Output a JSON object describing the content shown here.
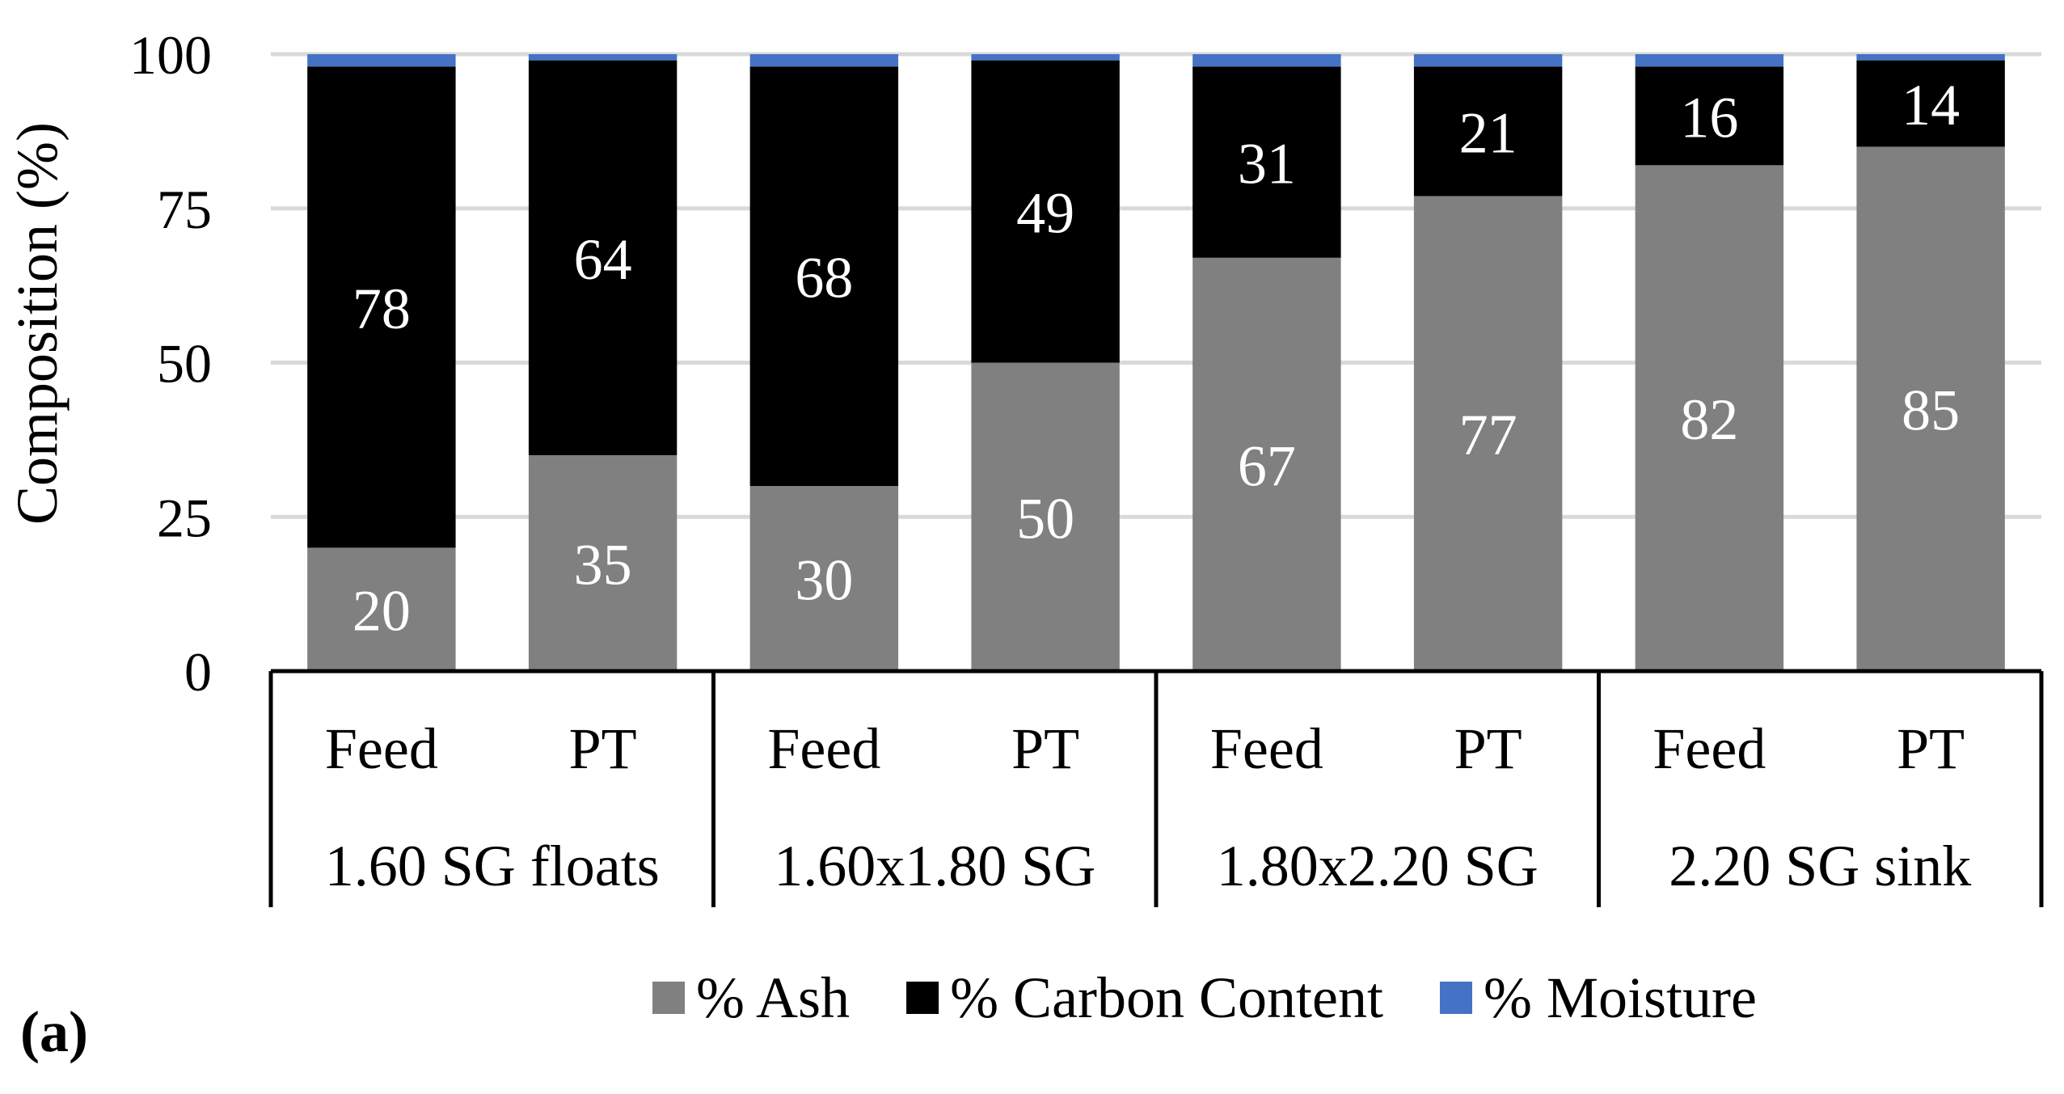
{
  "chart_data": {
    "type": "bar",
    "stacked": true,
    "panel_label": "(a)",
    "ylabel": "Composition (%)",
    "xlabel": "",
    "ylim": [
      0,
      100
    ],
    "yticks": [
      0,
      25,
      50,
      75,
      100
    ],
    "grid": true,
    "groups": [
      "1.60 SG floats",
      "1.60x1.80 SG",
      "1.80x2.20 SG",
      "2.20 SG sink"
    ],
    "categories": [
      "Feed",
      "PT",
      "Feed",
      "PT",
      "Feed",
      "PT",
      "Feed",
      "PT"
    ],
    "series": [
      {
        "name": "% Ash",
        "color": "#808080",
        "values": [
          20,
          35,
          30,
          50,
          67,
          77,
          82,
          85
        ],
        "labels": [
          "20",
          "35",
          "30",
          "50",
          "67",
          "77",
          "82",
          "85"
        ]
      },
      {
        "name": "% Carbon Content",
        "color": "#000000",
        "values": [
          78,
          64,
          68,
          49,
          31,
          21,
          16,
          14
        ],
        "labels": [
          "78",
          "64",
          "68",
          "49",
          "31",
          "21",
          "16",
          "14"
        ]
      },
      {
        "name": "% Moisture",
        "color": "#4472c4",
        "values": [
          2,
          1,
          2,
          1,
          2,
          2,
          2,
          1
        ]
      }
    ],
    "legend_position": "bottom"
  }
}
